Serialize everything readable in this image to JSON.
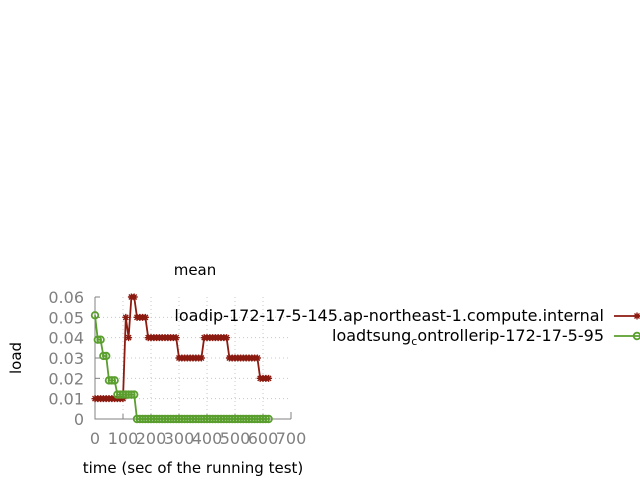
{
  "chart_data": {
    "type": "line",
    "title": "mean",
    "xlabel": "time (sec of the running test)",
    "ylabel": "load",
    "xlim": [
      0,
      700
    ],
    "ylim": [
      0,
      0.06
    ],
    "xticks": [
      0,
      100,
      200,
      300,
      400,
      500,
      600,
      700
    ],
    "xtick_labels": [
      "0",
      "100",
      "200",
      "300",
      "400",
      "500",
      "600",
      "700"
    ],
    "yticks": [
      0,
      0.01,
      0.02,
      0.03,
      0.04,
      0.05,
      0.06
    ],
    "ytick_labels": [
      "0",
      "0.01",
      "0.02",
      "0.03",
      "0.04",
      "0.05",
      "0.06"
    ],
    "grid": true,
    "legend_position": "right",
    "series": [
      {
        "name": "loadip-172-17-5-145.ap-northeast-1.compute.internal",
        "legend_text": [
          "load",
          "ip-172-17-5-145.ap-northeast-1.compute.internal"
        ],
        "color": "#8b1a10",
        "marker": "star",
        "x": [
          0,
          10,
          20,
          30,
          40,
          50,
          60,
          70,
          80,
          90,
          100,
          110,
          120,
          130,
          140,
          150,
          160,
          170,
          180,
          190,
          200,
          210,
          220,
          230,
          240,
          250,
          260,
          270,
          280,
          290,
          300,
          310,
          320,
          330,
          340,
          350,
          360,
          370,
          380,
          390,
          400,
          410,
          420,
          430,
          440,
          450,
          460,
          470,
          480,
          490,
          500,
          510,
          520,
          530,
          540,
          550,
          560,
          570,
          580,
          590,
          600,
          610,
          620
        ],
        "y": [
          0.01,
          0.01,
          0.01,
          0.01,
          0.01,
          0.01,
          0.01,
          0.01,
          0.01,
          0.01,
          0.01,
          0.05,
          0.04,
          0.06,
          0.06,
          0.05,
          0.05,
          0.05,
          0.05,
          0.04,
          0.04,
          0.04,
          0.04,
          0.04,
          0.04,
          0.04,
          0.04,
          0.04,
          0.04,
          0.04,
          0.03,
          0.03,
          0.03,
          0.03,
          0.03,
          0.03,
          0.03,
          0.03,
          0.03,
          0.04,
          0.04,
          0.04,
          0.04,
          0.04,
          0.04,
          0.04,
          0.04,
          0.04,
          0.03,
          0.03,
          0.03,
          0.03,
          0.03,
          0.03,
          0.03,
          0.03,
          0.03,
          0.03,
          0.03,
          0.02,
          0.02,
          0.02,
          0.02
        ]
      },
      {
        "name": "loadtsung_controllerip-172-17-5-95",
        "legend_text": [
          "load",
          "tsung",
          "c",
          "ontroller",
          "ip-172-17-5-95"
        ],
        "color": "#5a9e2e",
        "marker": "circle",
        "x": [
          0,
          10,
          20,
          30,
          40,
          50,
          60,
          70,
          80,
          90,
          100,
          110,
          120,
          130,
          140,
          150,
          160,
          170,
          180,
          190,
          200,
          210,
          220,
          230,
          240,
          250,
          260,
          270,
          280,
          290,
          300,
          310,
          320,
          330,
          340,
          350,
          360,
          370,
          380,
          390,
          400,
          410,
          420,
          430,
          440,
          450,
          460,
          470,
          480,
          490,
          500,
          510,
          520,
          530,
          540,
          550,
          560,
          570,
          580,
          590,
          600,
          610,
          620
        ],
        "y": [
          0.051,
          0.039,
          0.039,
          0.031,
          0.031,
          0.019,
          0.019,
          0.019,
          0.012,
          0.012,
          0.012,
          0.012,
          0.012,
          0.012,
          0.012,
          0,
          0,
          0,
          0,
          0,
          0,
          0,
          0,
          0,
          0,
          0,
          0,
          0,
          0,
          0,
          0,
          0,
          0,
          0,
          0,
          0,
          0,
          0,
          0,
          0,
          0,
          0,
          0,
          0,
          0,
          0,
          0,
          0,
          0,
          0,
          0,
          0,
          0,
          0,
          0,
          0,
          0,
          0,
          0,
          0,
          0,
          0,
          0
        ]
      }
    ]
  }
}
